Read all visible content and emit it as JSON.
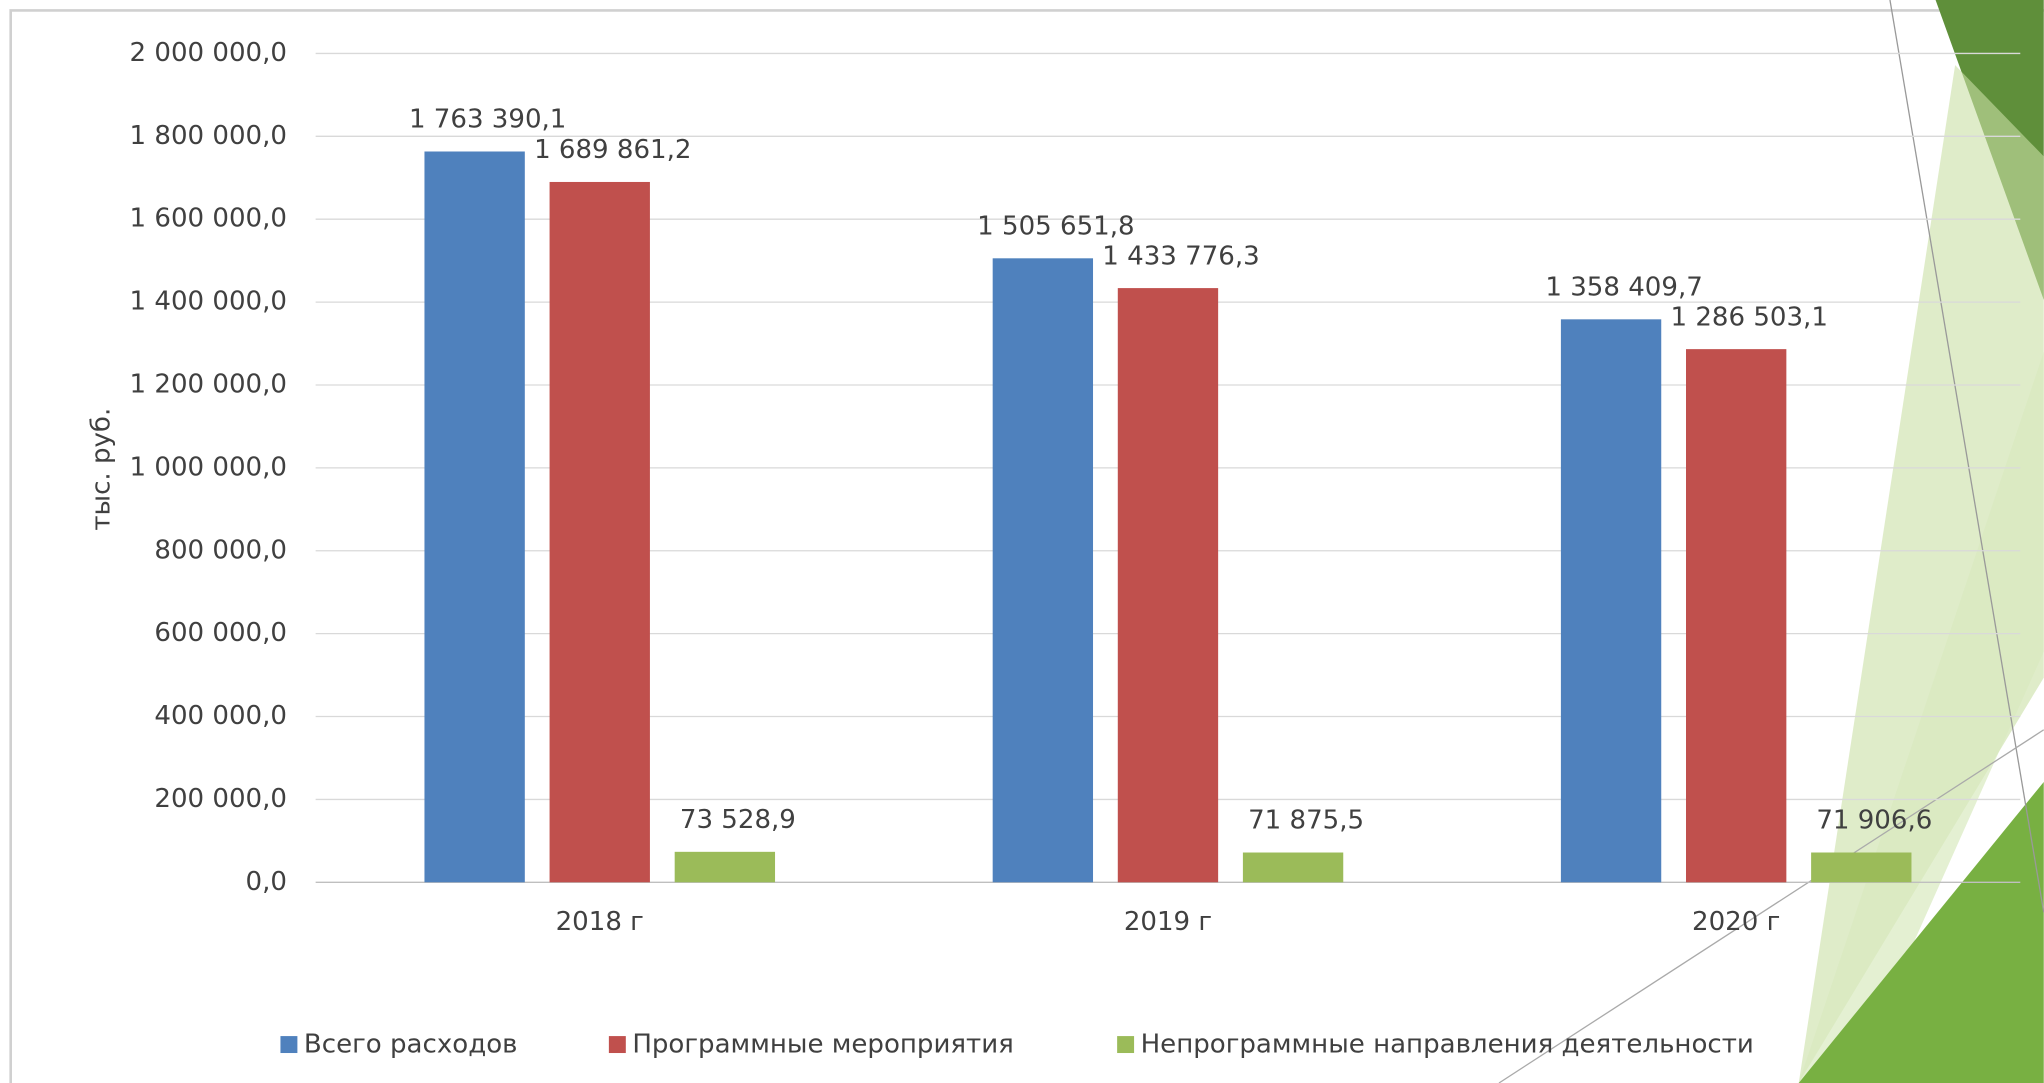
{
  "chart_data": {
    "type": "bar",
    "y_label": "тыс. руб.",
    "categories": [
      "2018 г",
      "2019 г",
      "2020 г"
    ],
    "series": [
      {
        "name": "Всего расходов",
        "color": "#4f81bd",
        "values": [
          1763390.1,
          1505651.8,
          1358409.7
        ],
        "value_labels": [
          "1 763 390,1",
          "1 505 651,8",
          "1 358 409,7"
        ]
      },
      {
        "name": "Программные мероприятия",
        "color": "#c0504d",
        "values": [
          1689861.2,
          1433776.3,
          1286503.1
        ],
        "value_labels": [
          "1 689 861,2",
          "1 433 776,3",
          "1 286 503,1"
        ]
      },
      {
        "name": "Непрограммные направления деятельности",
        "color": "#9bbb59",
        "values": [
          73528.9,
          71875.5,
          71906.6
        ],
        "value_labels": [
          "73 528,9",
          "71 875,5",
          "71 906,6"
        ]
      }
    ],
    "ylim": [
      0,
      2000000
    ],
    "yticks": [
      {
        "value": 0,
        "label": "0,0"
      },
      {
        "value": 200000,
        "label": "200 000,0"
      },
      {
        "value": 400000,
        "label": "400 000,0"
      },
      {
        "value": 600000,
        "label": "600 000,0"
      },
      {
        "value": 800000,
        "label": "800 000,0"
      },
      {
        "value": 1000000,
        "label": "1 000 000,0"
      },
      {
        "value": 1200000,
        "label": "1 200 000,0"
      },
      {
        "value": 1400000,
        "label": "1 400 000,0"
      },
      {
        "value": 1600000,
        "label": "1 600 000,0"
      },
      {
        "value": 1800000,
        "label": "1 800 000,0"
      },
      {
        "value": 2000000,
        "label": "2 000 000,0"
      }
    ],
    "grid": true,
    "legend": "bottom"
  }
}
